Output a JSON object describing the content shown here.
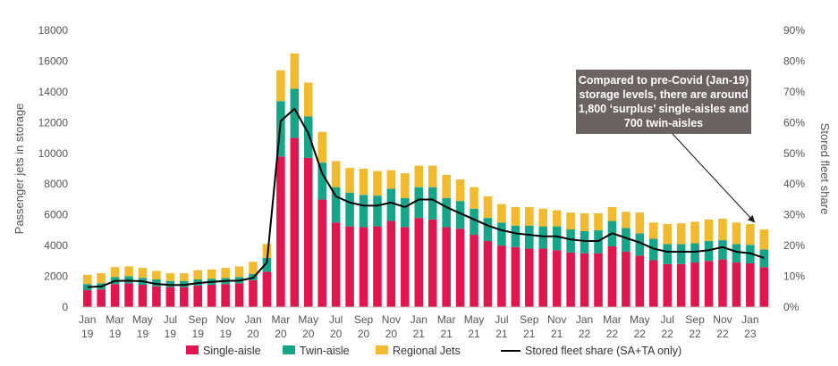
{
  "chart_data": {
    "type": "bar",
    "stacked": true,
    "categories": [
      "Jan 19",
      "Feb 19",
      "Mar 19",
      "Apr 19",
      "May 19",
      "Jun 19",
      "Jul 19",
      "Aug 19",
      "Sep 19",
      "Oct 19",
      "Nov 19",
      "Dec 19",
      "Jan 20",
      "Feb 20",
      "Mar 20",
      "Apr 20",
      "May 20",
      "Jun 20",
      "Jul 20",
      "Aug 20",
      "Sep 20",
      "Oct 20",
      "Nov 20",
      "Dec 20",
      "Jan 21",
      "Feb 21",
      "Mar 21",
      "Apr 21",
      "May 21",
      "Jun 21",
      "Jul 21",
      "Aug 21",
      "Sep 21",
      "Oct 21",
      "Nov 21",
      "Dec 21",
      "Jan 22",
      "Feb 22",
      "Mar 22",
      "Apr 22",
      "May 22",
      "Jun 22",
      "Jul 22",
      "Aug 22",
      "Sep 22",
      "Oct 22",
      "Nov 22",
      "Dec 22",
      "Jan 23",
      "Feb 23"
    ],
    "x_tick_labels": [
      {
        "index": 0,
        "month": "Jan",
        "year": "19"
      },
      {
        "index": 2,
        "month": "Mar",
        "year": "19"
      },
      {
        "index": 4,
        "month": "May",
        "year": "19"
      },
      {
        "index": 6,
        "month": "Jul",
        "year": "19"
      },
      {
        "index": 8,
        "month": "Sep",
        "year": "19"
      },
      {
        "index": 10,
        "month": "Nov",
        "year": "19"
      },
      {
        "index": 12,
        "month": "Jan",
        "year": "20"
      },
      {
        "index": 14,
        "month": "Mar",
        "year": "20"
      },
      {
        "index": 16,
        "month": "May",
        "year": "20"
      },
      {
        "index": 18,
        "month": "Jul",
        "year": "20"
      },
      {
        "index": 20,
        "month": "Sep",
        "year": "20"
      },
      {
        "index": 22,
        "month": "Nov",
        "year": "20"
      },
      {
        "index": 24,
        "month": "Jan",
        "year": "21"
      },
      {
        "index": 26,
        "month": "Mar",
        "year": "21"
      },
      {
        "index": 28,
        "month": "May",
        "year": "21"
      },
      {
        "index": 30,
        "month": "Jul",
        "year": "21"
      },
      {
        "index": 32,
        "month": "Sep",
        "year": "21"
      },
      {
        "index": 34,
        "month": "Nov",
        "year": "21"
      },
      {
        "index": 36,
        "month": "Jan",
        "year": "22"
      },
      {
        "index": 38,
        "month": "Mar",
        "year": "22"
      },
      {
        "index": 40,
        "month": "May",
        "year": "22"
      },
      {
        "index": 42,
        "month": "Jul",
        "year": "22"
      },
      {
        "index": 44,
        "month": "Sep",
        "year": "22"
      },
      {
        "index": 46,
        "month": "Nov",
        "year": "22"
      },
      {
        "index": 48,
        "month": "Jan",
        "year": "23"
      }
    ],
    "series": [
      {
        "name": "Single-aisle",
        "color": "#e0174f",
        "values": [
          1100,
          1150,
          1500,
          1550,
          1450,
          1350,
          1300,
          1300,
          1400,
          1450,
          1500,
          1550,
          1750,
          2300,
          9800,
          11000,
          9700,
          7000,
          5500,
          5250,
          5200,
          5250,
          5600,
          5200,
          5800,
          5700,
          5200,
          5100,
          4700,
          4300,
          4000,
          3900,
          3800,
          3800,
          3700,
          3550,
          3500,
          3500,
          3950,
          3600,
          3350,
          3050,
          2800,
          2800,
          2900,
          3000,
          3100,
          2900,
          2850,
          2600
        ]
      },
      {
        "name": "Twin-aisle",
        "color": "#17a589",
        "values": [
          400,
          400,
          450,
          450,
          450,
          450,
          400,
          400,
          400,
          400,
          400,
          400,
          400,
          900,
          3600,
          3200,
          2700,
          2400,
          2300,
          2200,
          2100,
          2000,
          2100,
          1900,
          2000,
          2100,
          1900,
          1800,
          1700,
          1500,
          1500,
          1400,
          1500,
          1450,
          1550,
          1500,
          1450,
          1500,
          1650,
          1550,
          1450,
          1400,
          1300,
          1300,
          1250,
          1300,
          1250,
          1200,
          1200,
          1150
        ]
      },
      {
        "name": "Regional Jets",
        "color": "#f2bb2f",
        "values": [
          600,
          650,
          650,
          650,
          650,
          550,
          500,
          500,
          600,
          600,
          650,
          700,
          800,
          900,
          2000,
          2300,
          2200,
          2000,
          1700,
          1600,
          1700,
          1600,
          1200,
          1600,
          1400,
          1400,
          1500,
          1400,
          1400,
          1400,
          1200,
          1200,
          1200,
          1150,
          1050,
          1100,
          1150,
          1100,
          900,
          1050,
          1350,
          1050,
          1300,
          1350,
          1400,
          1400,
          1400,
          1400,
          1350,
          1300
        ]
      },
      {
        "name": "Stored fleet share (SA+TA only)",
        "type": "line",
        "axis": "right",
        "color": "#000000",
        "values": [
          6.5,
          6.7,
          8.5,
          8.6,
          8.4,
          7.5,
          7.2,
          7.2,
          7.8,
          8.2,
          8.5,
          8.6,
          9.5,
          14.5,
          60.5,
          64.5,
          56.5,
          43.5,
          36.0,
          34.0,
          33.0,
          33.0,
          34.0,
          32.5,
          35.0,
          35.0,
          32.5,
          30.5,
          28.5,
          26.5,
          25.0,
          24.0,
          23.5,
          23.0,
          23.0,
          22.0,
          21.5,
          21.5,
          24.0,
          22.5,
          21.0,
          19.0,
          18.0,
          18.0,
          18.0,
          18.5,
          19.5,
          18.0,
          17.5,
          16.0
        ]
      }
    ],
    "ylabel": "Passenger jets in storage",
    "ylim": [
      0,
      18000
    ],
    "yticks": [
      "0",
      "2000",
      "4000",
      "6000",
      "8000",
      "10000",
      "12000",
      "14000",
      "16000",
      "18000"
    ],
    "y2label": "Stored fleet share",
    "y2lim": [
      0,
      90
    ],
    "y2ticks": [
      "0%",
      "10%",
      "20%",
      "30%",
      "40%",
      "50%",
      "60%",
      "70%",
      "80%",
      "90%"
    ],
    "grid": false,
    "legend_position": "bottom",
    "annotation": {
      "lines": [
        "Compared to pre-Covid (Jan-19)",
        "storage levels, there are around",
        "1,800 ‘surplus’ single-aisles and",
        "700 twin-aisles"
      ],
      "box_color": "#6b6262",
      "points_to_index": 48
    }
  }
}
